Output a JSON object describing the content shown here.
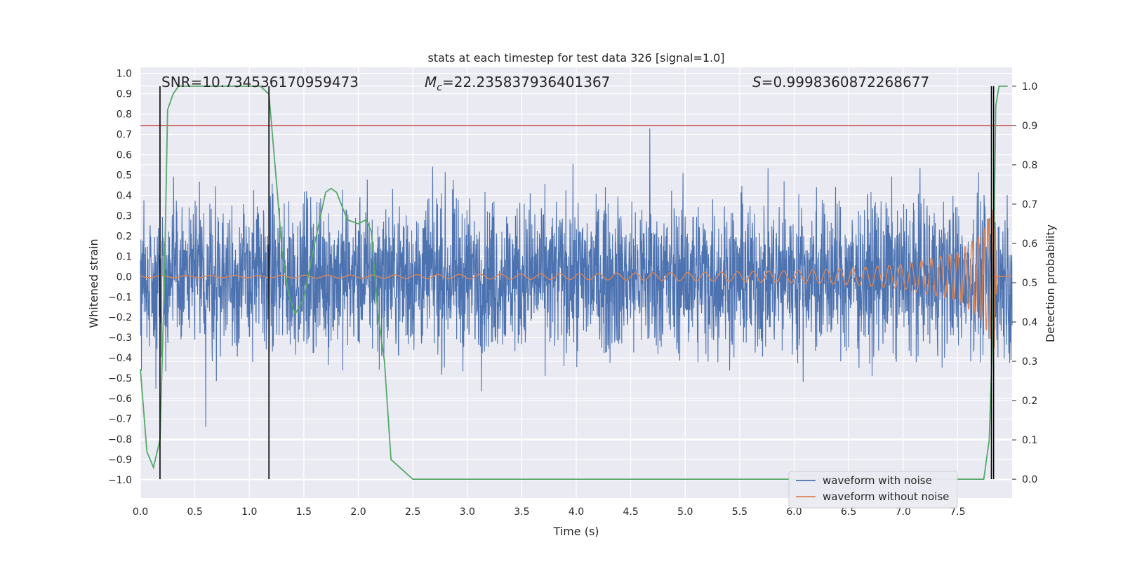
{
  "chart_data": {
    "type": "line",
    "title": "stats at each timestep for test data 326 [signal=1.0]",
    "xlabel": "Time (s)",
    "ylabel": "Whitened strain",
    "y2label": "Detection probability",
    "xlim": [
      0.0,
      8.0
    ],
    "ylim": [
      -1.09,
      1.03
    ],
    "y2lim": [
      -0.048,
      1.048
    ],
    "xticks": [
      "0.0",
      "0.5",
      "1.0",
      "1.5",
      "2.0",
      "2.5",
      "3.0",
      "3.5",
      "4.0",
      "4.5",
      "5.0",
      "5.5",
      "6.0",
      "6.5",
      "7.0",
      "7.5"
    ],
    "yticks": [
      "1.0",
      "0.9",
      "0.8",
      "0.7",
      "0.6",
      "0.5",
      "0.4",
      "0.3",
      "0.2",
      "0.1",
      "0.0",
      "−0.1",
      "−0.2",
      "−0.3",
      "−0.4",
      "−0.5",
      "−0.6",
      "−0.7",
      "−0.8",
      "−0.9",
      "−1.0"
    ],
    "y2ticks": [
      "0.0",
      "0.1",
      "0.2",
      "0.3",
      "0.4",
      "0.5",
      "0.6",
      "0.7",
      "0.8",
      "0.9",
      "1.0"
    ],
    "grid": true,
    "annotations": {
      "snr": "SNR=10.734536170959473",
      "mc_symbol": "M",
      "mc_sub": "c",
      "mc_value": "=22.235837936401367",
      "s_symbol": "S",
      "s_value": "=0.9998360872268677"
    },
    "threshold_line": {
      "y2": 0.9,
      "color": "#c44e52"
    },
    "vertical_markers_x": [
      0.18,
      1.18,
      7.81,
      7.83
    ],
    "legend": {
      "position": "lower-right",
      "entries": [
        "waveform with noise",
        "waveform without noise"
      ]
    },
    "series": [
      {
        "name": "waveform with noise",
        "color": "#4c72b0",
        "axis": "left",
        "x_range": [
          0.0,
          8.0
        ],
        "typical_envelope": [
          -0.45,
          0.45
        ],
        "max": 0.73,
        "min": -0.77
      },
      {
        "name": "waveform without noise",
        "color": "#dd8452",
        "axis": "left",
        "description_points": {
          "x": [
            0.0,
            1.0,
            2.0,
            3.0,
            4.0,
            5.0,
            6.0,
            6.5,
            7.0,
            7.5,
            7.7,
            7.8,
            7.84,
            7.86
          ],
          "amplitude": [
            0.005,
            0.006,
            0.008,
            0.011,
            0.015,
            0.02,
            0.03,
            0.04,
            0.06,
            0.12,
            0.2,
            0.3,
            0.36,
            0.0
          ]
        }
      },
      {
        "name": "",
        "color": "#55a868",
        "axis": "right",
        "x": [
          0.0,
          0.06,
          0.12,
          0.18,
          0.22,
          0.25,
          0.3,
          0.35,
          0.5,
          0.8,
          1.0,
          1.1,
          1.18,
          1.22,
          1.26,
          1.3,
          1.36,
          1.42,
          1.5,
          1.6,
          1.7,
          1.75,
          1.8,
          1.9,
          2.0,
          2.07,
          2.12,
          2.18,
          2.24,
          2.3,
          2.5,
          3.0,
          4.0,
          5.0,
          6.0,
          7.0,
          7.5,
          7.74,
          7.79,
          7.82,
          7.85,
          7.88,
          7.92,
          7.96
        ],
        "y": [
          0.28,
          0.07,
          0.03,
          0.1,
          0.5,
          0.94,
          0.98,
          1.0,
          1.0,
          1.0,
          1.0,
          1.0,
          0.98,
          0.85,
          0.72,
          0.58,
          0.47,
          0.42,
          0.46,
          0.6,
          0.73,
          0.74,
          0.73,
          0.66,
          0.65,
          0.66,
          0.63,
          0.42,
          0.3,
          0.05,
          0.0,
          0.0,
          0.0,
          0.0,
          0.0,
          0.0,
          0.0,
          0.0,
          0.1,
          0.35,
          0.95,
          1.0,
          1.0,
          1.0
        ]
      }
    ]
  }
}
